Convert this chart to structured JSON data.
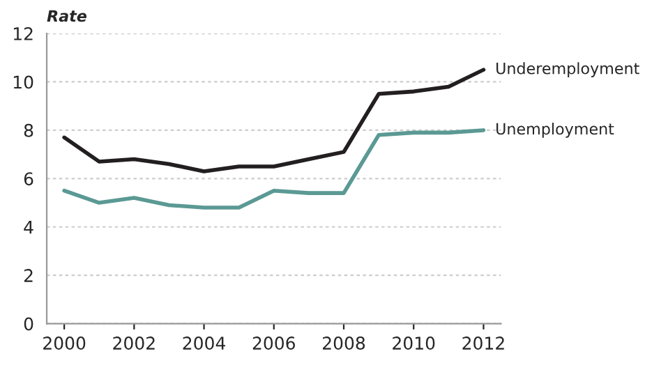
{
  "chart_data": {
    "type": "line",
    "ylabel": "Rate",
    "x": [
      2000,
      2001,
      2002,
      2003,
      2004,
      2005,
      2006,
      2007,
      2008,
      2009,
      2010,
      2011,
      2012
    ],
    "series": [
      {
        "name": "Underemployment",
        "color": "#231f20",
        "values": [
          7.7,
          6.7,
          6.8,
          6.6,
          6.3,
          6.5,
          6.5,
          6.8,
          7.1,
          9.5,
          9.6,
          9.8,
          10.5
        ]
      },
      {
        "name": "Unemployment",
        "color": "#5b9994",
        "values": [
          5.5,
          5.0,
          5.2,
          4.9,
          4.8,
          4.8,
          5.5,
          5.4,
          5.4,
          7.8,
          7.9,
          7.9,
          8.0
        ]
      }
    ],
    "xlim": [
      1999.5,
      2012.5
    ],
    "xticks": [
      2000,
      2002,
      2004,
      2006,
      2008,
      2010,
      2012
    ],
    "ylim": [
      0,
      12
    ],
    "yticks": [
      0,
      2,
      4,
      6,
      8,
      10,
      12
    ],
    "grid": "y",
    "legend": false,
    "marker": "none",
    "line_style": "solid"
  }
}
